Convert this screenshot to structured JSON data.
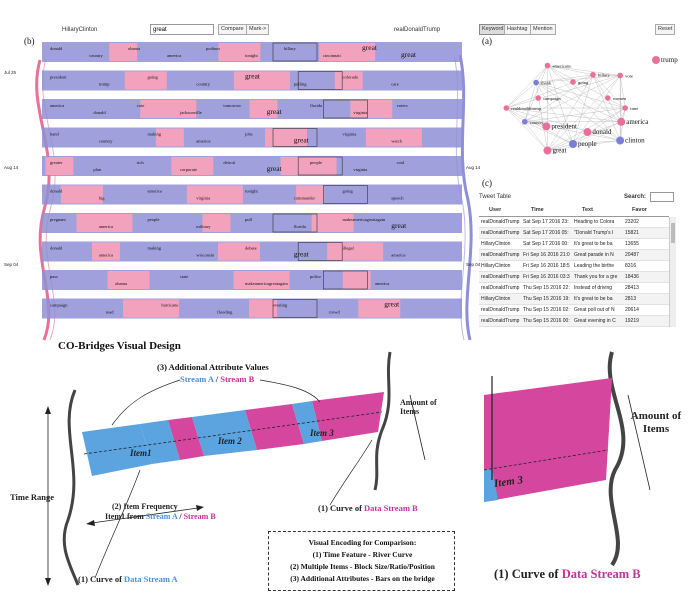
{
  "toolbar": {
    "left_stream": "HillaryClinton",
    "search_value": "great",
    "compare_button": "Compare",
    "mark_button": "Mark->",
    "right_stream": "realDonaldTrump",
    "tabs": [
      "Keyword",
      "Hashtag",
      "Mention"
    ],
    "reset_button": "Reset"
  },
  "panel_labels": {
    "b": "(b)",
    "a": "(a)",
    "c": "(c)"
  },
  "time_axis": {
    "left": [
      "Jul 25",
      "Aug 14",
      "Sep 04"
    ],
    "right": [
      "Aug 14",
      "Sep 04"
    ]
  },
  "bridge_keywords": [
    [
      "donald",
      "country",
      "obama",
      "america",
      "podium",
      "tonight",
      "hillary",
      "cincinnati",
      "great",
      "great"
    ],
    [
      "president",
      "trump",
      "going",
      "country",
      "great",
      "pulling",
      "colorado",
      "care"
    ],
    [
      "america",
      "donald",
      "vote",
      "jacksonville",
      "tomorrow",
      "great",
      "florida",
      "virginia",
      "voters"
    ],
    [
      "hand",
      "country",
      "making",
      "america",
      "jobs",
      "great",
      "virginia",
      "watch"
    ],
    [
      "greater",
      "plan",
      "rich",
      "corporate",
      "detroit",
      "great",
      "people",
      "virginia",
      "coal"
    ],
    [
      "donald",
      "big",
      "america",
      "virginia",
      "tonight",
      "commander",
      "going",
      "speech"
    ],
    [
      "pregnant",
      "america",
      "people",
      "military",
      "pull",
      "florida",
      "makeamericagreatagain",
      "great"
    ],
    [
      "donald",
      "america",
      "making",
      "wisconsin",
      "debate",
      "great",
      "illegal",
      "america"
    ],
    [
      "pass",
      "obama",
      "state",
      "makeamericagreatagain",
      "police",
      "america"
    ],
    [
      "campaign",
      "read",
      "hurricane",
      "flooding",
      "evening",
      "crowd",
      "great"
    ]
  ],
  "network": {
    "nodes": [
      {
        "label": "trump",
        "color": "#e8709a"
      },
      {
        "label": "america",
        "color": "#e8709a"
      },
      {
        "label": "clinton",
        "color": "#7a7ed4"
      },
      {
        "label": "donald",
        "color": "#e8709a"
      },
      {
        "label": "people",
        "color": "#7a7ed4"
      },
      {
        "label": "great",
        "color": "#e8709a"
      },
      {
        "label": "president",
        "color": "#e8709a"
      },
      {
        "label": "country",
        "color": "#7a7ed4"
      },
      {
        "label": "realdonaldtrump",
        "color": "#e8709a"
      },
      {
        "label": "campaign",
        "color": "#e8709a"
      },
      {
        "label": "thank",
        "color": "#7a7ed4"
      },
      {
        "label": "americans",
        "color": "#e8709a"
      },
      {
        "label": "going",
        "color": "#e8709a"
      },
      {
        "label": "hillary",
        "color": "#e8709a"
      },
      {
        "label": "vote",
        "color": "#e8709a"
      },
      {
        "label": "women",
        "color": "#e8709a"
      },
      {
        "label": "time",
        "color": "#e8709a"
      }
    ]
  },
  "tweet_table": {
    "title": "Tweet Table",
    "search_label": "Search:",
    "columns": [
      "User",
      "Time",
      "Text",
      "Favor"
    ],
    "rows": [
      [
        "realDonaldTrump",
        "Sat Sep 17 2016 23:",
        "Heading to Colora",
        "23202"
      ],
      [
        "realDonaldTrump",
        "Sat Sep 17 2016 05:",
        "\"Donald Trump's I",
        "15821"
      ],
      [
        "HillaryClinton",
        "Sat Sep 17 2016 00:",
        "It's great to be ba",
        "13655"
      ],
      [
        "realDonaldTrump",
        "Fri Sep 16 2016 21:0",
        "Great parade in N",
        "20487"
      ],
      [
        "HillaryClinton",
        "Fri Sep 16 2016 18:5",
        "Leading the birthe",
        "8316"
      ],
      [
        "realDonaldTrump",
        "Fri Sep 16 2016 03:3",
        "Thank you for a gre",
        "18436"
      ],
      [
        "realDonaldTrump",
        "Thu Sep 15 2016 22:",
        "Instead of driving",
        "28413"
      ],
      [
        "HillaryClinton",
        "Thu Sep 15 2016 19:",
        "It's great to be ba",
        "2813"
      ],
      [
        "realDonaldTrump",
        "Thu Sep 15 2016 02:",
        "Great poll out of N",
        "20614"
      ],
      [
        "realDonaldTrump",
        "Thu Sep 15 2016 00:",
        "Great evening in C",
        "19219"
      ]
    ]
  },
  "design": {
    "title": "CO-Bridges Visual Design",
    "attr_heading": "(3) Additional Attribute Values",
    "stream_a": "Stream A",
    "stream_sep": " / ",
    "stream_b": "Stream B",
    "amount_of_items": "Amount of Items",
    "time_range": "Time Range",
    "item1": "Item1",
    "item2": "Item 2",
    "item3": "Item 3",
    "curve_b_prefix": "(1) Curve of ",
    "curve_b_data": "Data Stream B",
    "curve_a_prefix": "(1) Curve of ",
    "curve_a_data": "Data Stream A",
    "freq_label": "(2) Item Frequency",
    "freq_from": "Item1 from ",
    "freq_sep": " / ",
    "encoding_lines": [
      "Visual Encoding for Comparison:",
      "(1) Time Feature - River Curve",
      "(2) Multiple Items - Block Size/Ratio/Position",
      "(3) Additional Attributes - Bars on the bridge"
    ]
  },
  "zoom": {
    "amount_of_items": "Amount of Items",
    "item3": "Item 3",
    "curve_prefix": "(1) Curve of ",
    "curve_data": "Data Stream B"
  },
  "colors": {
    "stream_a": "#4a90d9",
    "stream_b": "#c2339b",
    "bridge_purple": "#8e8fd6",
    "bridge_pink": "#f2a2bc"
  }
}
